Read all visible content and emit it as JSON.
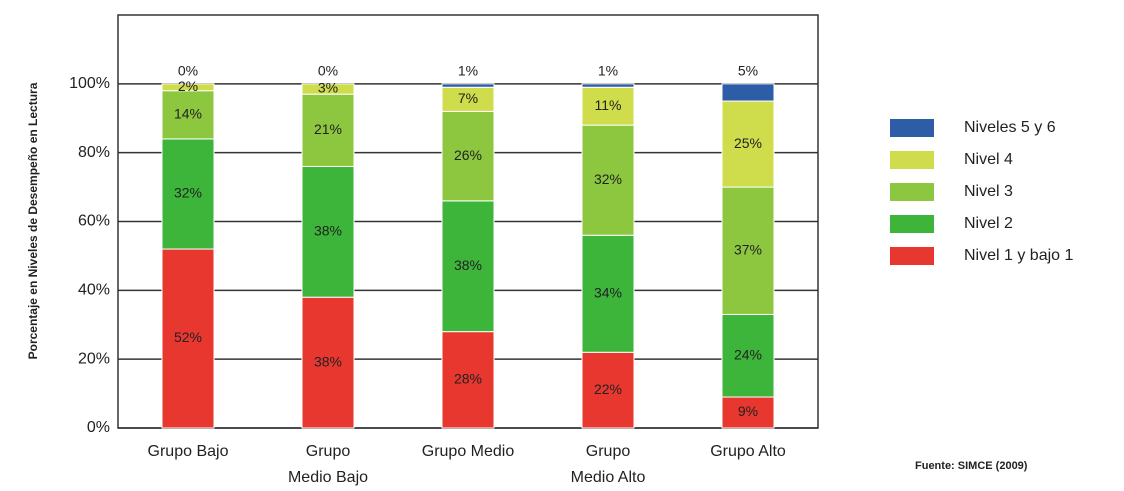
{
  "chart_data": {
    "type": "stacked-bar",
    "y_label": "Porcentaje en Niveles de Desempeño en Lectura",
    "source": "Fuente: SIMCE (2009)",
    "categories": [
      "Grupo Bajo",
      "Grupo Medio Bajo",
      "Grupo Medio",
      "Grupo Medio Alto",
      "Grupo Alto"
    ],
    "series": [
      {
        "name": "Nivel 1 y bajo 1",
        "color": "#e8372f",
        "values": [
          52,
          38,
          28,
          22,
          9
        ],
        "value_labels": [
          "52%",
          "38%",
          "28%",
          "22%",
          "9%"
        ]
      },
      {
        "name": "Nivel 2",
        "color": "#3db53a",
        "values": [
          32,
          38,
          38,
          34,
          24
        ],
        "value_labels": [
          "32%",
          "38%",
          "38%",
          "34%",
          "24%"
        ]
      },
      {
        "name": "Nivel 3",
        "color": "#8dc63f",
        "values": [
          14,
          21,
          26,
          32,
          37
        ],
        "value_labels": [
          "14%",
          "21%",
          "26%",
          "32%",
          "37%"
        ]
      },
      {
        "name": "Nivel 4",
        "color": "#cfdc4b",
        "values": [
          2,
          3,
          7,
          11,
          25
        ],
        "value_labels": [
          "2%",
          "3%",
          "7%",
          "11%",
          "25%"
        ]
      },
      {
        "name": "Niveles 5 y 6",
        "color": "#2e5da8",
        "values": [
          0,
          0,
          1,
          1,
          5
        ],
        "value_labels": [
          "0%",
          "0%",
          "1%",
          "1%",
          "5%"
        ]
      }
    ],
    "ylim": [
      0,
      120
    ],
    "yticks": [
      {
        "value": 0,
        "label": "0%"
      },
      {
        "value": 20,
        "label": "20%"
      },
      {
        "value": 40,
        "label": "40%"
      },
      {
        "value": 60,
        "label": "60%"
      },
      {
        "value": 80,
        "label": "80%"
      },
      {
        "value": 100,
        "label": "100%"
      }
    ],
    "grid": true
  }
}
